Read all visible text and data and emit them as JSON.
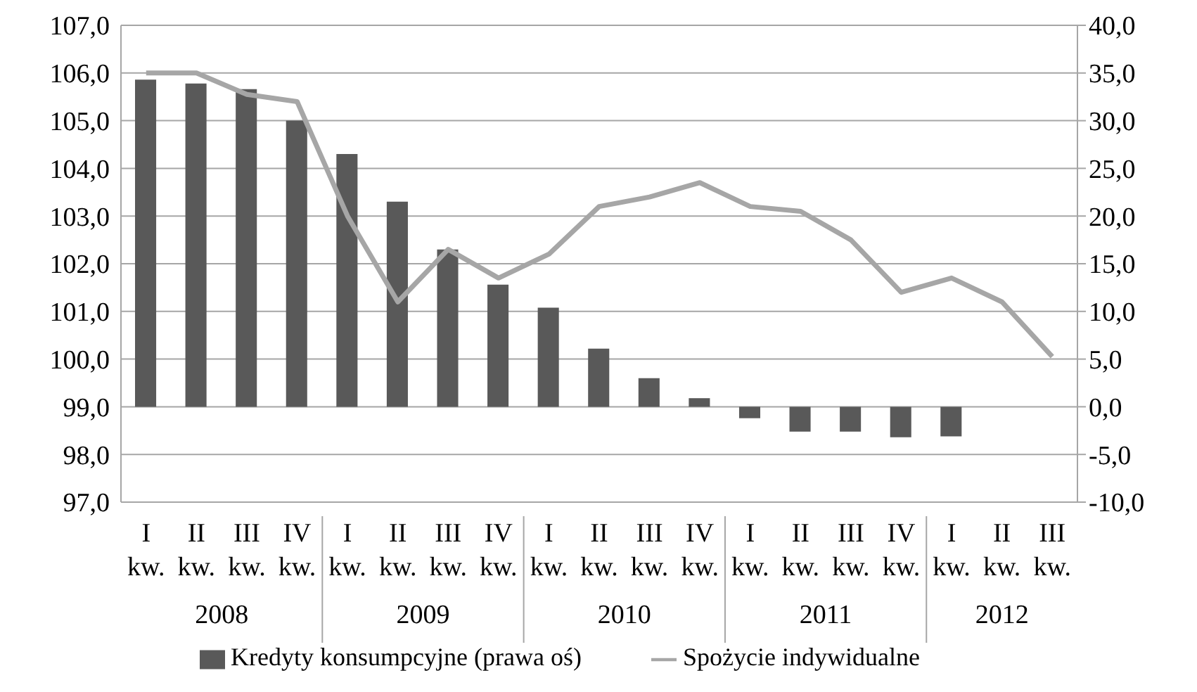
{
  "chart_data": {
    "type": "bar",
    "categories": [
      "I kw.",
      "II kw.",
      "III kw.",
      "IV kw.",
      "I kw.",
      "II kw.",
      "III kw.",
      "IV kw.",
      "I kw.",
      "II kw.",
      "III kw.",
      "IV kw.",
      "I kw.",
      "II kw.",
      "III kw.",
      "IV kw.",
      "I kw.",
      "II kw.",
      "III kw."
    ],
    "annotations": [
      "2008",
      "2009",
      "2010",
      "2011",
      "2012"
    ],
    "series": [
      {
        "name": "Kredyty konsumpcyjne (prawa oś)",
        "axis": "y2",
        "color": "#595959",
        "values": [
          34.3,
          33.9,
          33.3,
          30.0,
          26.5,
          21.5,
          16.5,
          12.8,
          10.4,
          6.1,
          3.0,
          0.9,
          -1.2,
          -2.6,
          -2.6,
          -3.2,
          -3.1,
          null,
          null
        ]
      },
      {
        "name": "Spożycie indywidualne",
        "type": "line",
        "color": "#a6a6a6",
        "values": [
          106.0,
          106.0,
          105.55,
          105.4,
          103.0,
          101.2,
          102.3,
          101.7,
          102.2,
          103.2,
          103.4,
          103.7,
          103.2,
          103.1,
          102.5,
          101.4,
          101.7,
          101.2,
          100.05
        ]
      }
    ],
    "ylim": [
      97,
      107
    ],
    "yticks": [
      {
        "value": 97,
        "label": "97,0"
      },
      {
        "value": 98,
        "label": "98,0"
      },
      {
        "value": 99,
        "label": "99,0"
      },
      {
        "value": 100,
        "label": "100,0"
      },
      {
        "value": 101,
        "label": "101,0"
      },
      {
        "value": 102,
        "label": "102,0"
      },
      {
        "value": 103,
        "label": "103,0"
      },
      {
        "value": 104,
        "label": "104,0"
      },
      {
        "value": 105,
        "label": "105,0"
      },
      {
        "value": 106,
        "label": "106,0"
      },
      {
        "value": 107,
        "label": "107,0"
      }
    ],
    "y2lim": [
      -10,
      40
    ],
    "y2ticks": [
      {
        "value": -10,
        "label": "-10,0"
      },
      {
        "value": -5,
        "label": "-5,0"
      },
      {
        "value": 0,
        "label": "0,0"
      },
      {
        "value": 5,
        "label": "5,0"
      },
      {
        "value": 10,
        "label": "10,0"
      },
      {
        "value": 15,
        "label": "15,0"
      },
      {
        "value": 20,
        "label": "20,0"
      },
      {
        "value": 25,
        "label": "25,0"
      },
      {
        "value": 30,
        "label": "30,0"
      },
      {
        "value": 35,
        "label": "35,0"
      },
      {
        "value": 40,
        "label": "40,0"
      }
    ],
    "grid": "y",
    "legend": "bottom",
    "marker": "none",
    "line_style": "solid"
  }
}
